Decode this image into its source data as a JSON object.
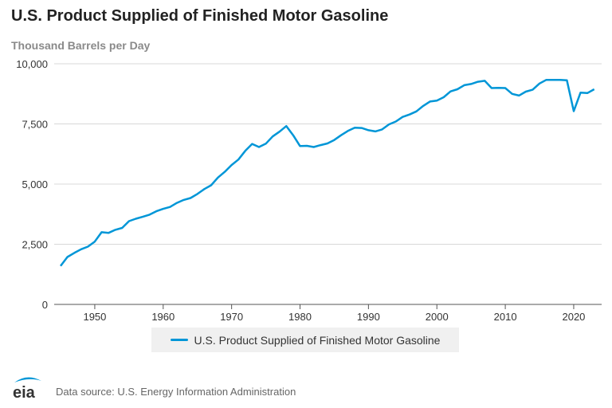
{
  "chart_data": {
    "type": "line",
    "title": "U.S. Product Supplied of Finished Motor Gasoline",
    "ylabel": "Thousand Barrels per Day",
    "xlabel": "",
    "ylim": [
      0,
      10000
    ],
    "xlim": [
      1945,
      2023
    ],
    "yticks": [
      "0",
      "2,500",
      "5,000",
      "7,500",
      "10,000"
    ],
    "ytick_values": [
      0,
      2500,
      5000,
      7500,
      10000
    ],
    "xticks": [
      "1950",
      "1960",
      "1970",
      "1980",
      "1990",
      "2000",
      "2010",
      "2020"
    ],
    "xtick_values": [
      1950,
      1960,
      1970,
      1980,
      1990,
      2000,
      2010,
      2020
    ],
    "grid": "horizontal",
    "legend_placement": "bottom",
    "color": "#0096d7",
    "series": [
      {
        "name": "U.S. Product Supplied of Finished Motor Gasoline",
        "x": [
          1945,
          1946,
          1947,
          1948,
          1949,
          1950,
          1951,
          1952,
          1953,
          1954,
          1955,
          1956,
          1957,
          1958,
          1959,
          1960,
          1961,
          1962,
          1963,
          1964,
          1965,
          1966,
          1967,
          1968,
          1969,
          1970,
          1971,
          1972,
          1973,
          1974,
          1975,
          1976,
          1977,
          1978,
          1979,
          1980,
          1981,
          1982,
          1983,
          1984,
          1985,
          1986,
          1987,
          1988,
          1989,
          1990,
          1991,
          1992,
          1993,
          1994,
          1995,
          1996,
          1997,
          1998,
          1999,
          2000,
          2001,
          2002,
          2003,
          2004,
          2005,
          2006,
          2007,
          2008,
          2009,
          2010,
          2011,
          2012,
          2013,
          2014,
          2015,
          2016,
          2017,
          2018,
          2019,
          2020,
          2021,
          2022,
          2023
        ],
        "values": [
          1600,
          1970,
          2140,
          2290,
          2400,
          2610,
          3000,
          2970,
          3100,
          3180,
          3460,
          3560,
          3640,
          3730,
          3870,
          3970,
          4050,
          4220,
          4340,
          4420,
          4590,
          4790,
          4950,
          5270,
          5510,
          5790,
          6020,
          6380,
          6670,
          6540,
          6680,
          6980,
          7180,
          7410,
          7030,
          6580,
          6590,
          6540,
          6620,
          6690,
          6830,
          7030,
          7210,
          7340,
          7330,
          7240,
          7190,
          7270,
          7480,
          7600,
          7790,
          7890,
          8020,
          8250,
          8430,
          8470,
          8610,
          8850,
          8940,
          9110,
          9160,
          9250,
          9290,
          8990,
          9000,
          8990,
          8750,
          8680,
          8840,
          8920,
          9180,
          9330,
          9330,
          9330,
          9310,
          8030,
          8800,
          8780,
          8940
        ]
      }
    ]
  },
  "footer": {
    "logo_text": "eia",
    "source": "Data source: U.S. Energy Information Administration"
  }
}
